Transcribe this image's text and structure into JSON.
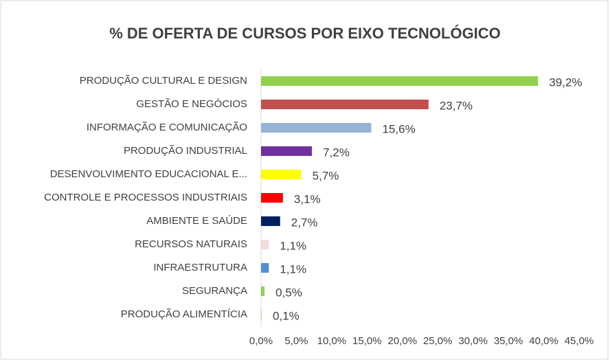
{
  "chart_data": {
    "type": "bar",
    "orientation": "horizontal",
    "title": "% DE OFERTA DE CURSOS POR EIXO TECNOLÓGICO",
    "categories": [
      "PRODUÇÃO CULTURAL E DESIGN",
      "GESTÃO E NEGÓCIOS",
      "INFORMAÇÃO E COMUNICAÇÃO",
      "PRODUÇÃO INDUSTRIAL",
      "DESENVOLVIMENTO EDUCACIONAL E...",
      "CONTROLE E PROCESSOS INDUSTRIAIS",
      "AMBIENTE E SAÚDE",
      "RECURSOS NATURAIS",
      "INFRAESTRUTURA",
      "SEGURANÇA",
      "PRODUÇÃO ALIMENTÍCIA"
    ],
    "values": [
      39.2,
      23.7,
      15.6,
      7.2,
      5.7,
      3.1,
      2.7,
      1.1,
      1.1,
      0.5,
      0.1
    ],
    "value_labels": [
      "39,2%",
      "23,7%",
      "15,6%",
      "7,2%",
      "5,7%",
      "3,1%",
      "2,7%",
      "1,1%",
      "1,1%",
      "0,5%",
      "0,1%"
    ],
    "colors": [
      "#92d050",
      "#c0504d",
      "#95b3d7",
      "#7030a0",
      "#ffff00",
      "#ff0000",
      "#002060",
      "#f2dcdb",
      "#558ed5",
      "#92d050",
      "#c4d79b"
    ],
    "xlim": [
      0,
      45
    ],
    "xticks": [
      {
        "value": 0,
        "label": "0,0%"
      },
      {
        "value": 5,
        "label": "5,0%"
      },
      {
        "value": 10,
        "label": "10,0%"
      },
      {
        "value": 15,
        "label": "15,0%"
      },
      {
        "value": 20,
        "label": "20,0%"
      },
      {
        "value": 25,
        "label": "25,0%"
      },
      {
        "value": 30,
        "label": "30,0%"
      },
      {
        "value": 35,
        "label": "35,0%"
      },
      {
        "value": 40,
        "label": "40,0%"
      },
      {
        "value": 45,
        "label": "45,0%"
      }
    ],
    "grid": false
  }
}
